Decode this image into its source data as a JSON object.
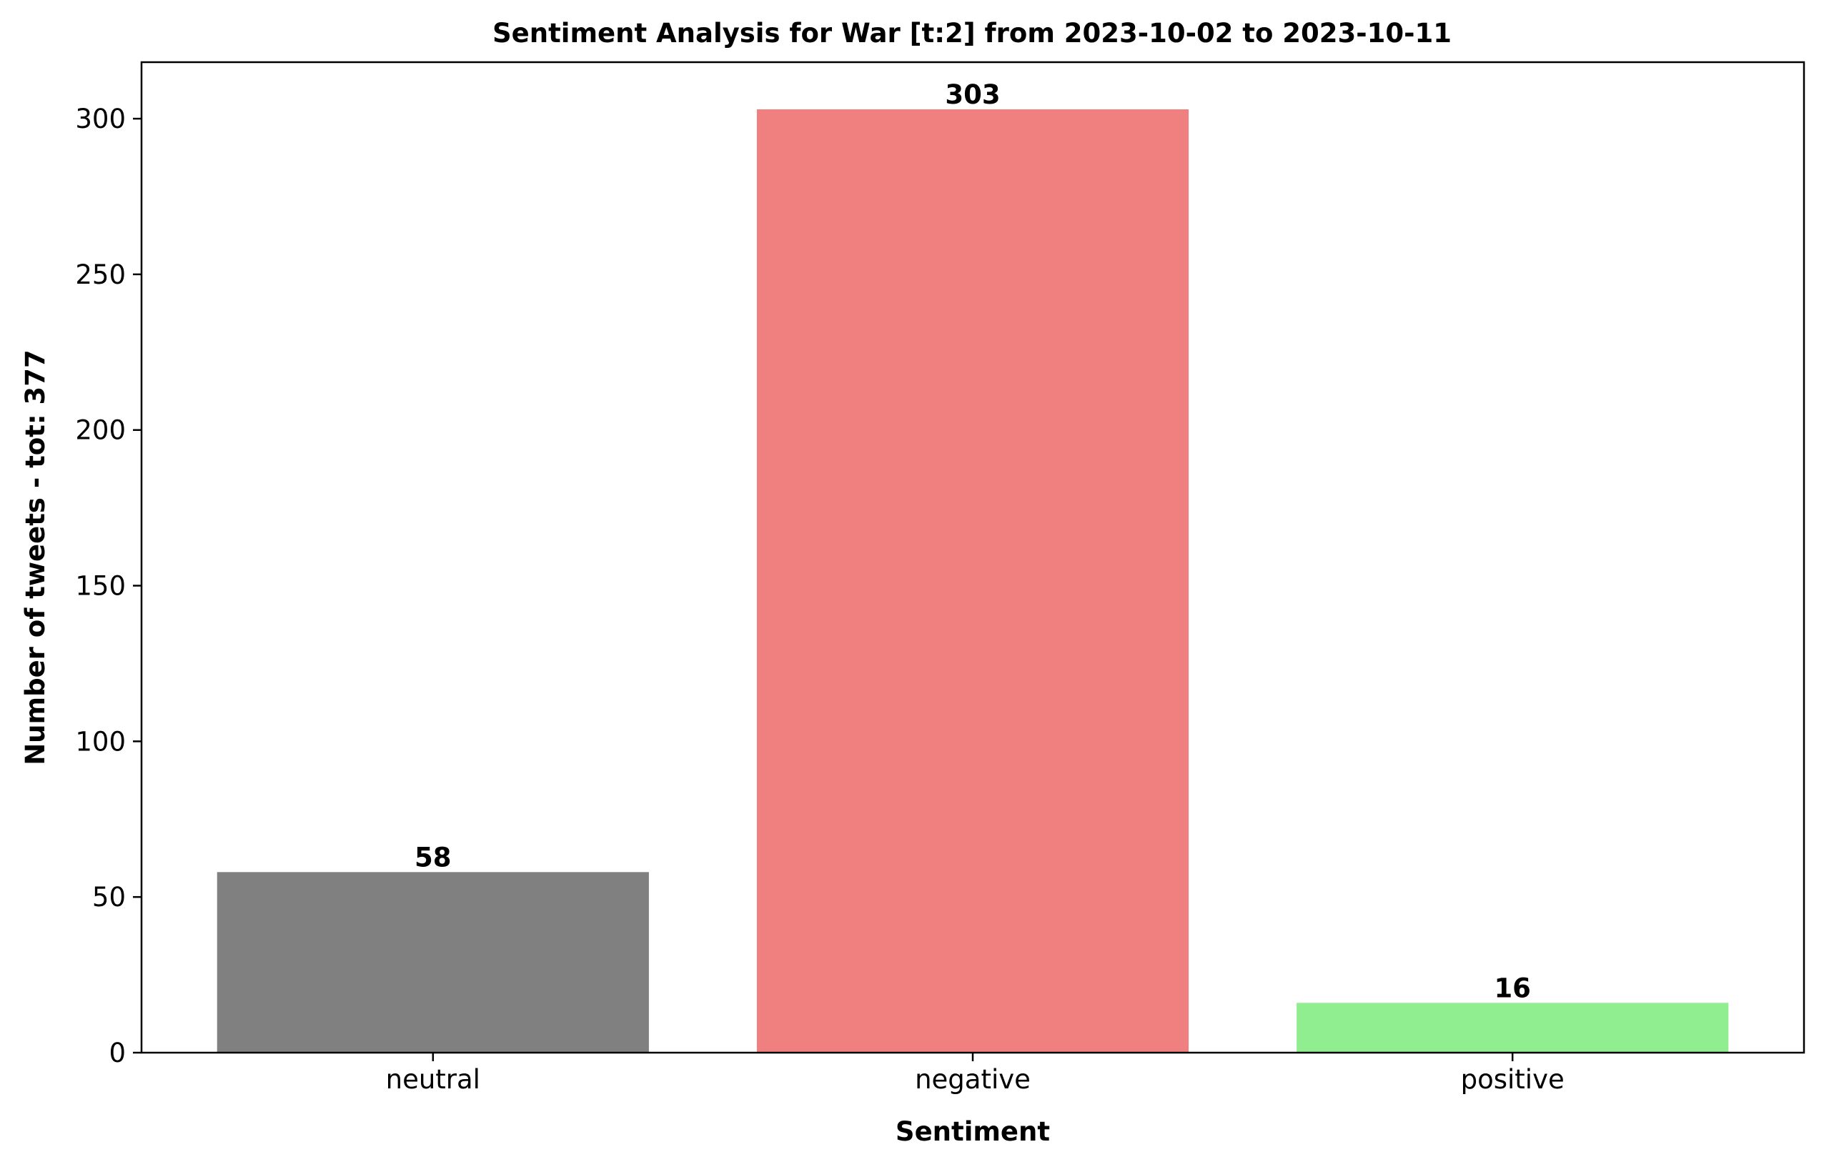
{
  "chart_data": {
    "type": "bar",
    "title": "Sentiment Analysis for War [t:2] from 2023-10-02 to 2023-10-11",
    "xlabel": "Sentiment",
    "ylabel": "Number of tweets - tot: 377",
    "categories": [
      "neutral",
      "negative",
      "positive"
    ],
    "values": [
      58,
      303,
      16
    ],
    "value_labels": [
      "58",
      "303",
      "16"
    ],
    "colors": [
      "#808080",
      "#f08080",
      "#90ee90"
    ],
    "ylim": [
      0,
      318.15
    ],
    "yticks": [
      0,
      50,
      100,
      150,
      200,
      250,
      300
    ],
    "ytick_labels": [
      "0",
      "50",
      "100",
      "150",
      "200",
      "250",
      "300"
    ],
    "grid": false,
    "legend": "none"
  }
}
